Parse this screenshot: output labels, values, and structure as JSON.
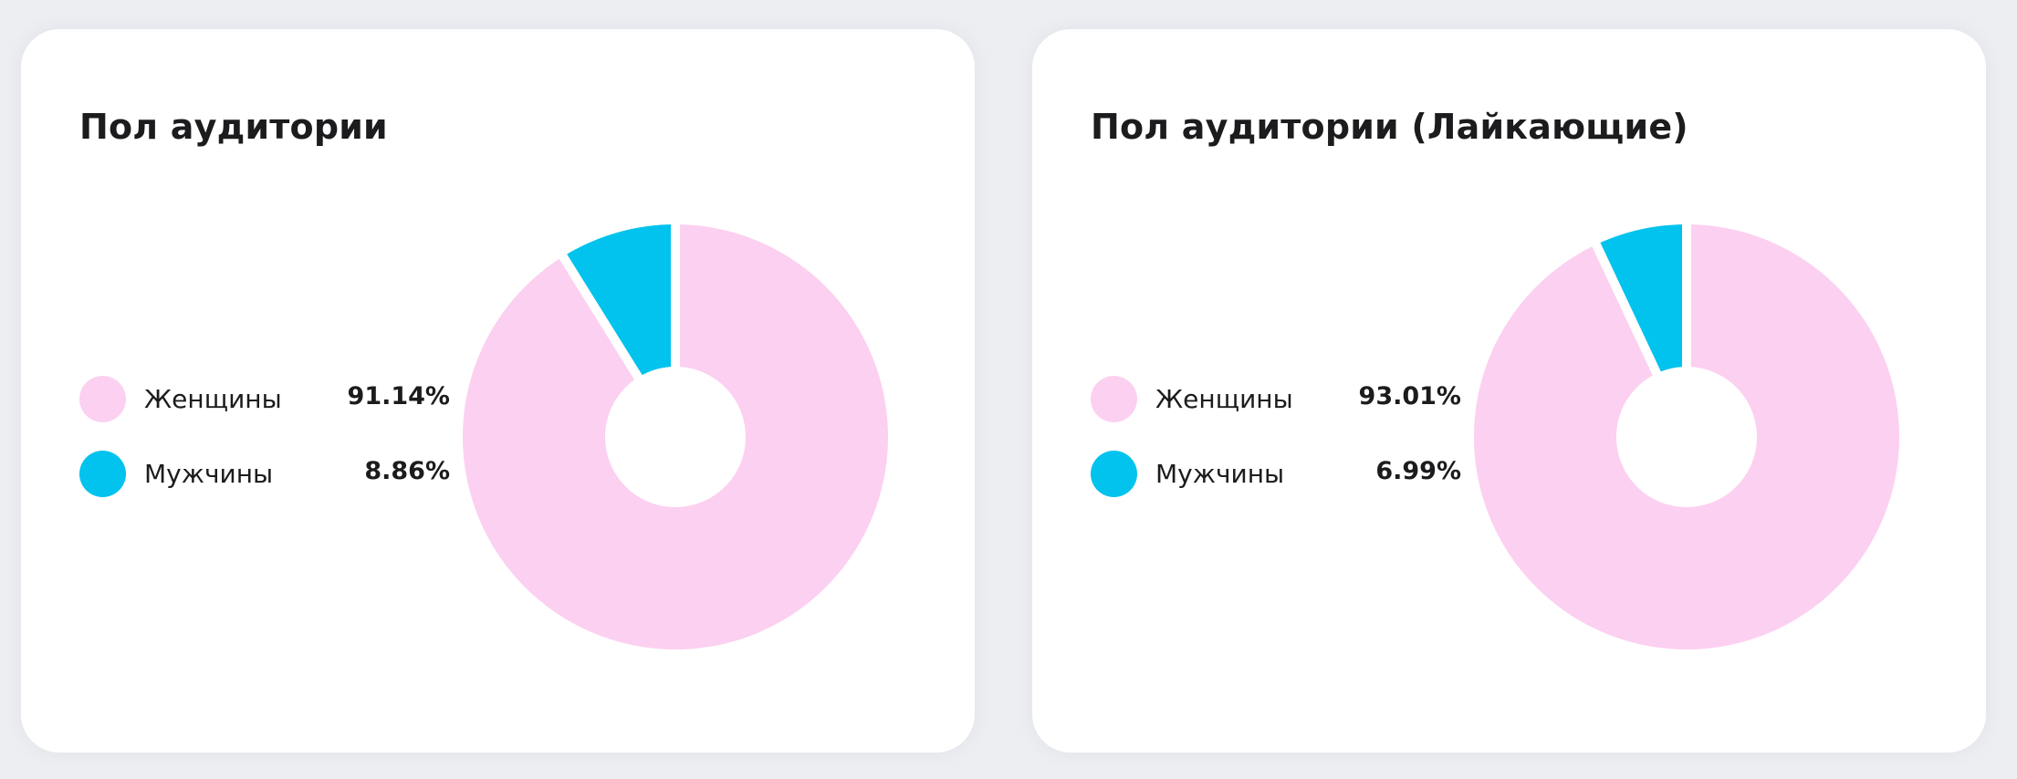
{
  "colors": {
    "women": "#fcd0f0",
    "men": "#01c3ed",
    "gap": "#ffffff"
  },
  "chart_data": [
    {
      "type": "pie",
      "title": "Пол аудитории",
      "series": [
        {
          "name": "Женщины",
          "value": 91.14,
          "label": "91.14%",
          "color": "#fcd0f0"
        },
        {
          "name": "Мужчины",
          "value": 8.86,
          "label": "8.86%",
          "color": "#01c3ed"
        }
      ],
      "legend_position": "left"
    },
    {
      "type": "pie",
      "title": "Пол аудитории (Лайкающие)",
      "series": [
        {
          "name": "Женщины",
          "value": 93.01,
          "label": "93.01%",
          "color": "#fcd0f0"
        },
        {
          "name": "Мужчины",
          "value": 6.99,
          "label": "6.99%",
          "color": "#01c3ed"
        }
      ],
      "legend_position": "left"
    }
  ]
}
